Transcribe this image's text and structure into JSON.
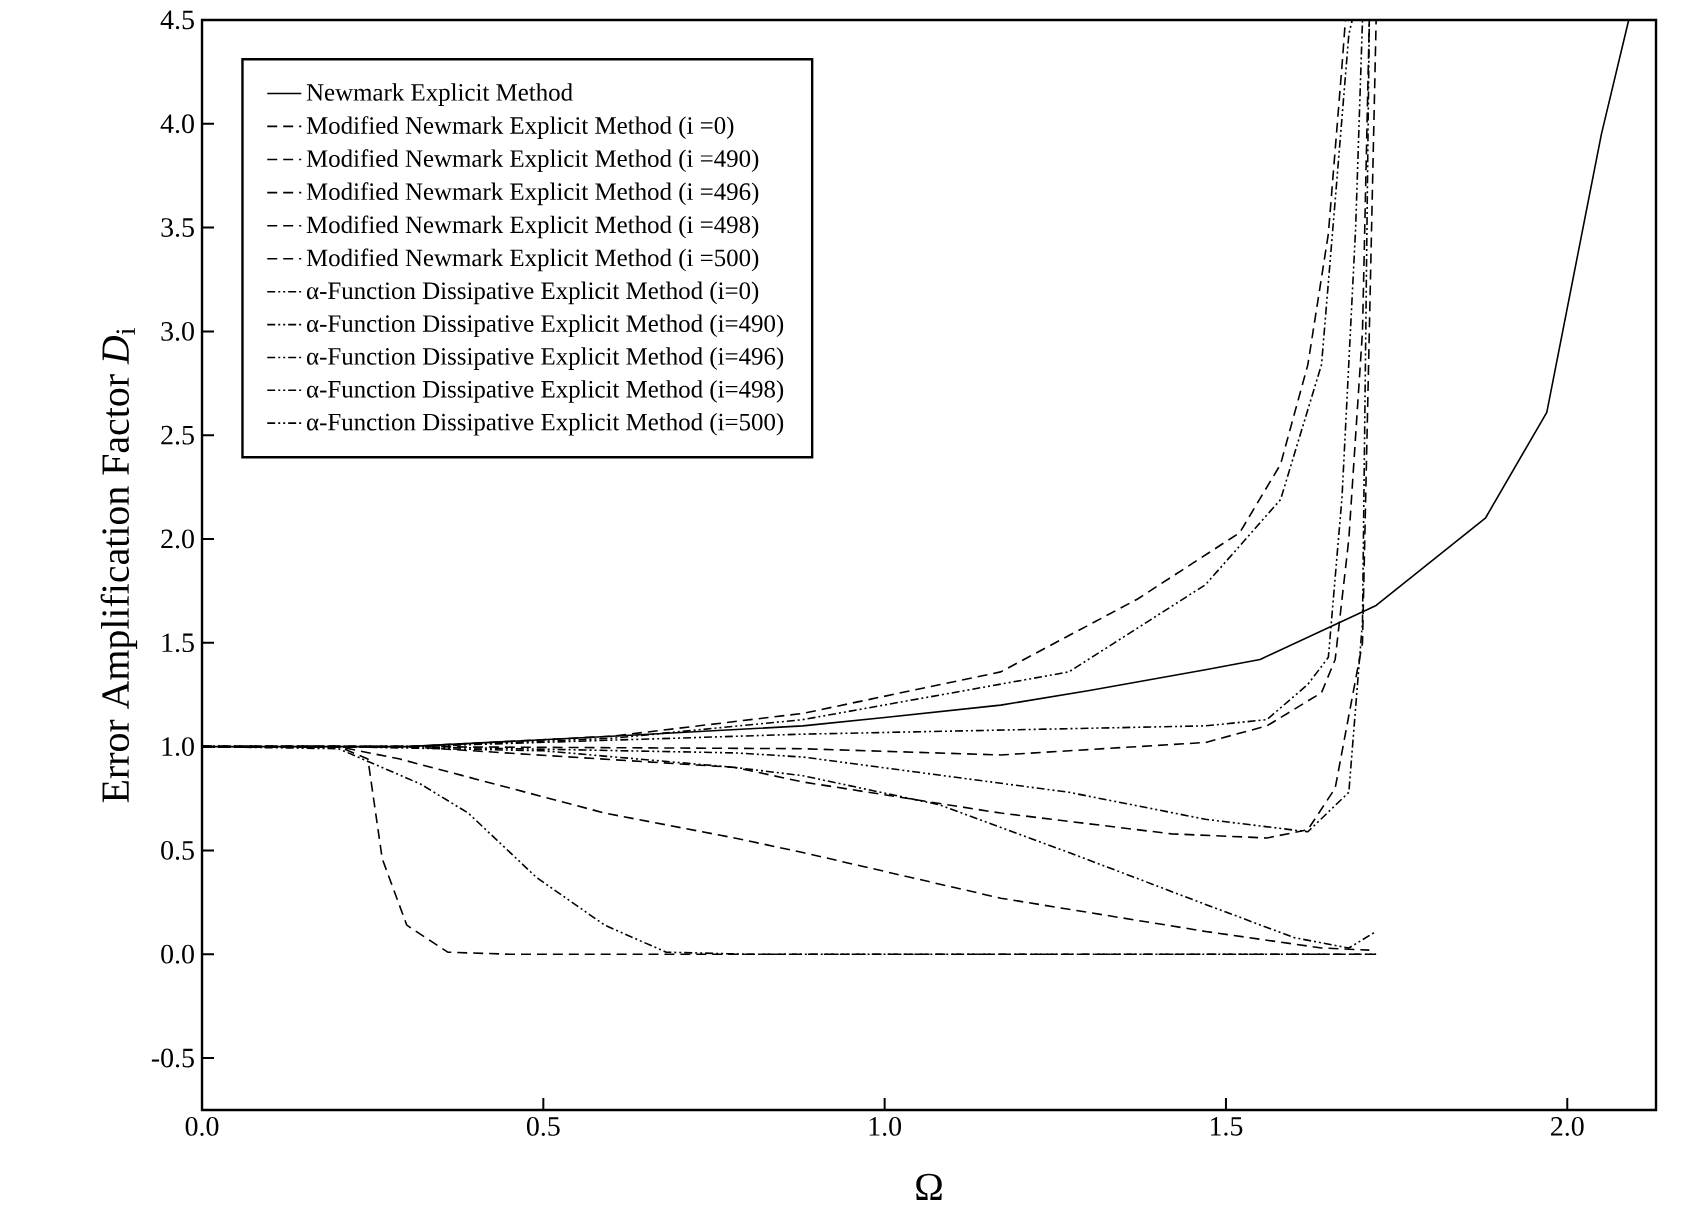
{
  "chart_data": {
    "type": "line",
    "xlabel": "Ω",
    "ylabel": "Error Amplification Factor *D*$_{i}$",
    "xlim": [
      0,
      2.13
    ],
    "ylim": [
      -0.75,
      4.5
    ],
    "xticks": [
      {
        "value": 0,
        "label": "0.0"
      },
      {
        "value": 0.5,
        "label": "0.5"
      },
      {
        "value": 1,
        "label": "1.0"
      },
      {
        "value": 1.5,
        "label": "1.5"
      },
      {
        "value": 2,
        "label": "2.0"
      }
    ],
    "yticks": [
      {
        "value": -0.5,
        "label": "-0.5"
      },
      {
        "value": 0,
        "label": "0.0"
      },
      {
        "value": 0.5,
        "label": "0.5"
      },
      {
        "value": 1,
        "label": "1.0"
      },
      {
        "value": 1.5,
        "label": "1.5"
      },
      {
        "value": 2,
        "label": "2.0"
      },
      {
        "value": 2.5,
        "label": "2.5"
      },
      {
        "value": 3,
        "label": "3.0"
      },
      {
        "value": 3.5,
        "label": "3.5"
      },
      {
        "value": 4,
        "label": "4.0"
      },
      {
        "value": 4.5,
        "label": "4.5"
      }
    ],
    "legend": "top left",
    "grid": false,
    "marker": "none",
    "series": [
      {
        "name": "Newmark Explicit Method",
        "color": "#000000",
        "line_style": "solid",
        "x": [
          0,
          0.3,
          0.6,
          0.88,
          1.0,
          1.17,
          1.3,
          1.47,
          1.55,
          1.72,
          1.88,
          1.97,
          2.05,
          2.09
        ],
        "values": [
          1,
          1,
          1.05,
          1.1,
          1.14,
          1.2,
          1.27,
          1.37,
          1.42,
          1.68,
          2.1,
          2.61,
          3.95,
          4.5
        ]
      },
      {
        "name": "Modified Newmark Explicit Method (i =0)",
        "color": "#000000",
        "line_style": "dashed",
        "x": [
          0,
          0.2,
          0.243,
          0.264,
          0.3,
          0.36,
          0.45,
          1.0,
          1.72
        ],
        "values": [
          1,
          1,
          0.94,
          0.46,
          0.14,
          0.01,
          0,
          0,
          0
        ]
      },
      {
        "name": "Modified Newmark Explicit Method (i =490)",
        "color": "#000000",
        "line_style": "dashed",
        "x": [
          0,
          0.2,
          0.29,
          0.59,
          0.78,
          0.88,
          1.17,
          1.47,
          1.64,
          1.71
        ],
        "values": [
          1,
          1,
          0.94,
          0.68,
          0.56,
          0.49,
          0.27,
          0.11,
          0.03,
          0.02
        ]
      },
      {
        "name": "Modified Newmark Explicit Method (i =496)",
        "color": "#000000",
        "line_style": "dashed",
        "x": [
          0,
          0.3,
          0.78,
          0.88,
          1.17,
          1.42,
          1.56,
          1.62,
          1.66,
          1.7,
          1.72
        ],
        "values": [
          1,
          1,
          0.9,
          0.83,
          0.68,
          0.58,
          0.56,
          0.6,
          0.8,
          1.5,
          4.5
        ]
      },
      {
        "name": "Modified Newmark Explicit Method (i =498)",
        "color": "#000000",
        "line_style": "dashed",
        "x": [
          0,
          0.3,
          0.88,
          1.17,
          1.47,
          1.56,
          1.64,
          1.66,
          1.68,
          1.7,
          1.71
        ],
        "values": [
          1,
          1,
          0.99,
          0.96,
          1.02,
          1.1,
          1.26,
          1.42,
          2.0,
          3.0,
          4.5
        ]
      },
      {
        "name": "Modified Newmark Explicit Method (i =500)",
        "color": "#000000",
        "line_style": "dashed",
        "x": [
          0,
          0.3,
          0.6,
          0.88,
          1.17,
          1.37,
          1.52,
          1.58,
          1.62,
          1.65,
          1.67,
          1.675
        ],
        "values": [
          1,
          1,
          1.05,
          1.16,
          1.36,
          1.71,
          2.03,
          2.36,
          2.84,
          3.47,
          4.28,
          4.5
        ]
      },
      {
        "name": "α-Function Dissipative Explicit Method (i=0)",
        "color": "#000000",
        "line_style": "dotted",
        "x": [
          0,
          0.2,
          0.32,
          0.39,
          0.49,
          0.59,
          0.68,
          0.8,
          1.72
        ],
        "values": [
          1,
          0.99,
          0.82,
          0.68,
          0.37,
          0.14,
          0.01,
          0,
          0
        ]
      },
      {
        "name": "α-Function Dissipative Explicit Method (i=490)",
        "color": "#000000",
        "line_style": "dotted",
        "x": [
          0,
          0.2,
          0.5,
          0.78,
          0.88,
          1.08,
          1.27,
          1.47,
          1.6,
          1.68,
          1.72
        ],
        "values": [
          1,
          1,
          0.98,
          0.9,
          0.86,
          0.72,
          0.49,
          0.24,
          0.08,
          0.03,
          0.11
        ]
      },
      {
        "name": "α-Function Dissipative Explicit Method (i=496)",
        "color": "#000000",
        "line_style": "dotted",
        "x": [
          0,
          0.3,
          0.78,
          0.88,
          1.27,
          1.47,
          1.62,
          1.68,
          1.7,
          1.71
        ],
        "values": [
          1,
          1,
          0.97,
          0.95,
          0.78,
          0.65,
          0.59,
          0.78,
          1.6,
          4.5
        ]
      },
      {
        "name": "α-Function Dissipative Explicit Method (i=498)",
        "color": "#000000",
        "line_style": "dotted",
        "x": [
          0,
          0.3,
          0.88,
          1.47,
          1.56,
          1.62,
          1.65,
          1.67,
          1.69,
          1.7
        ],
        "values": [
          1,
          1,
          1.06,
          1.1,
          1.13,
          1.3,
          1.43,
          2.2,
          3.5,
          4.5
        ]
      },
      {
        "name": "α-Function Dissipative Explicit Method (i=500)",
        "color": "#000000",
        "line_style": "dotted",
        "x": [
          0,
          0.3,
          0.6,
          0.88,
          1.27,
          1.47,
          1.58,
          1.64,
          1.66,
          1.68,
          1.685
        ],
        "values": [
          1,
          1,
          1.04,
          1.13,
          1.36,
          1.78,
          2.19,
          2.84,
          3.63,
          4.43,
          4.5
        ]
      }
    ]
  }
}
